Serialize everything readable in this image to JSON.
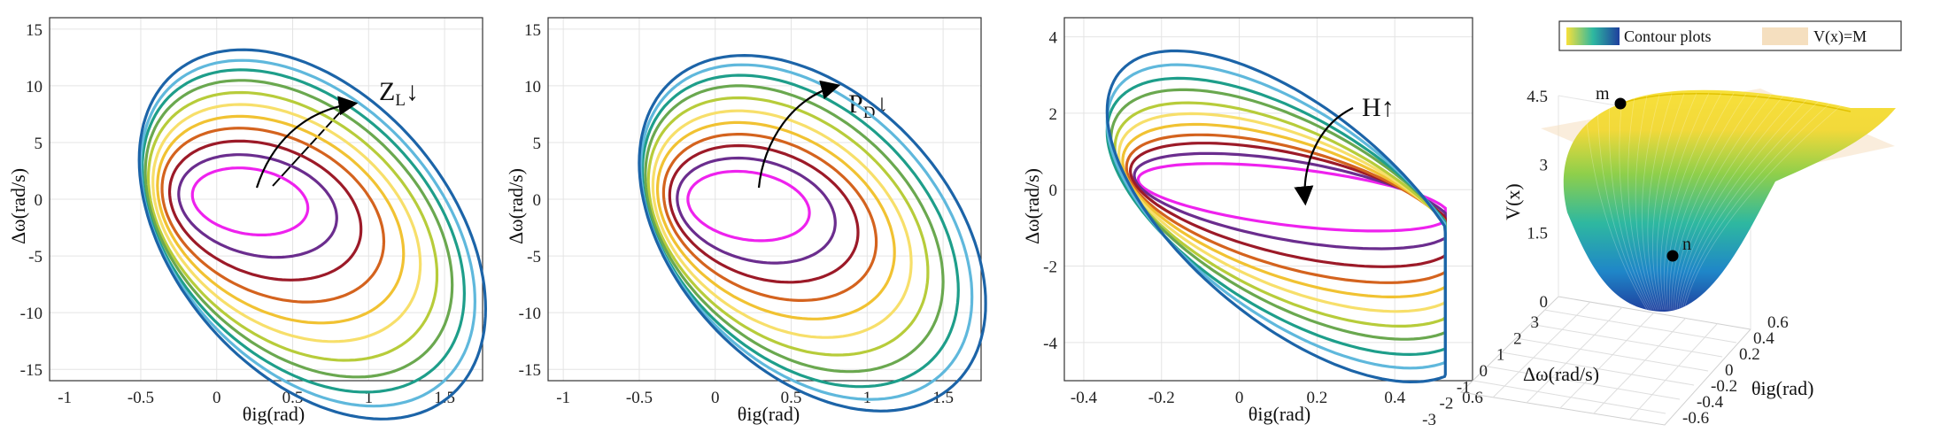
{
  "colors": [
    "#ee22ee",
    "#6b2d8e",
    "#9c1a28",
    "#d4631e",
    "#f1c232",
    "#f7df6a",
    "#b7cc3a",
    "#6aa84f",
    "#1e9e8a",
    "#5fb8dc",
    "#1c64a8"
  ],
  "chart_data": [
    {
      "type": "line",
      "panel": "a",
      "xlabel": "θig(rad)",
      "ylabel": "Δω(rad/s)",
      "xlim": [
        -1.1,
        1.75
      ],
      "ylim": [
        -16,
        16
      ],
      "xticks": [
        "-1",
        "-0.5",
        "0",
        "0.5",
        "1",
        "1.5"
      ],
      "yticks": [
        "-15",
        "-10",
        "-5",
        "0",
        "5",
        "10",
        "15"
      ],
      "annotation": "Z",
      "annotation_sub": "L",
      "annotation_arrow": "↓",
      "grid": true,
      "series": [
        {
          "cx": 0.22,
          "cy": -0.2,
          "a": 0.38,
          "b": 2.9,
          "tilt": -0.2
        },
        {
          "cx": 0.27,
          "cy": -0.6,
          "a": 0.52,
          "b": 4.4,
          "tilt": -0.24
        },
        {
          "cx": 0.32,
          "cy": -1.0,
          "a": 0.63,
          "b": 5.9,
          "tilt": -0.28
        },
        {
          "cx": 0.37,
          "cy": -1.4,
          "a": 0.73,
          "b": 7.3,
          "tilt": -0.32
        },
        {
          "cx": 0.42,
          "cy": -1.8,
          "a": 0.81,
          "b": 8.6,
          "tilt": -0.35
        },
        {
          "cx": 0.46,
          "cy": -2.1,
          "a": 0.88,
          "b": 9.8,
          "tilt": -0.37
        },
        {
          "cx": 0.5,
          "cy": -2.4,
          "a": 0.95,
          "b": 11.0,
          "tilt": -0.39
        },
        {
          "cx": 0.54,
          "cy": -2.6,
          "a": 1.01,
          "b": 12.1,
          "tilt": -0.41
        },
        {
          "cx": 0.57,
          "cy": -2.8,
          "a": 1.06,
          "b": 13.1,
          "tilt": -0.42
        },
        {
          "cx": 0.6,
          "cy": -3.0,
          "a": 1.1,
          "b": 14.0,
          "tilt": -0.43
        },
        {
          "cx": 0.63,
          "cy": -3.1,
          "a": 1.14,
          "b": 14.9,
          "tilt": -0.44
        }
      ]
    },
    {
      "type": "line",
      "panel": "b",
      "xlabel": "θig(rad)",
      "ylabel": "Δω(rad/s)",
      "xlim": [
        -1.1,
        1.75
      ],
      "ylim": [
        -16,
        16
      ],
      "xticks": [
        "-1",
        "-0.5",
        "0",
        "0.5",
        "1",
        "1.5"
      ],
      "yticks": [
        "-15",
        "-10",
        "-5",
        "0",
        "5",
        "10",
        "15"
      ],
      "annotation": "P",
      "annotation_sub": "D",
      "annotation_arrow": "↓",
      "grid": true,
      "series": [
        {
          "cx": 0.22,
          "cy": -0.6,
          "a": 0.4,
          "b": 3.0,
          "tilt": -0.2
        },
        {
          "cx": 0.27,
          "cy": -1.0,
          "a": 0.52,
          "b": 4.5,
          "tilt": -0.24
        },
        {
          "cx": 0.32,
          "cy": -1.3,
          "a": 0.62,
          "b": 5.8,
          "tilt": -0.28
        },
        {
          "cx": 0.36,
          "cy": -1.6,
          "a": 0.7,
          "b": 7.0,
          "tilt": -0.31
        },
        {
          "cx": 0.4,
          "cy": -1.9,
          "a": 0.78,
          "b": 8.2,
          "tilt": -0.34
        },
        {
          "cx": 0.44,
          "cy": -2.2,
          "a": 0.85,
          "b": 9.4,
          "tilt": -0.36
        },
        {
          "cx": 0.48,
          "cy": -2.4,
          "a": 0.92,
          "b": 10.6,
          "tilt": -0.38
        },
        {
          "cx": 0.52,
          "cy": -2.6,
          "a": 0.98,
          "b": 11.7,
          "tilt": -0.4
        },
        {
          "cx": 0.56,
          "cy": -2.8,
          "a": 1.04,
          "b": 12.7,
          "tilt": -0.41
        },
        {
          "cx": 0.6,
          "cy": -2.9,
          "a": 1.09,
          "b": 13.6,
          "tilt": -0.42
        },
        {
          "cx": 0.64,
          "cy": -3.0,
          "a": 1.14,
          "b": 14.4,
          "tilt": -0.43
        }
      ]
    },
    {
      "type": "line",
      "panel": "c",
      "xlabel": "θig(rad)",
      "ylabel": "Δω(rad/s)",
      "xlim": [
        -0.45,
        0.6
      ],
      "ylim": [
        -5,
        4.5
      ],
      "xticks": [
        "-0.4",
        "-0.2",
        "0",
        "0.2",
        "0.4",
        "0.6"
      ],
      "yticks": [
        "-4",
        "-2",
        "0",
        "2",
        "4"
      ],
      "annotation": "H",
      "annotation_arrow": "↑",
      "grid": true,
      "series": [
        {
          "cx": 0.14,
          "cy": -0.2,
          "a": 0.4,
          "b": 0.75,
          "tilt": -0.62
        },
        {
          "cx": 0.14,
          "cy": -0.3,
          "a": 0.41,
          "b": 1.05,
          "tilt": -0.64
        },
        {
          "cx": 0.14,
          "cy": -0.4,
          "a": 0.42,
          "b": 1.35,
          "tilt": -0.66
        },
        {
          "cx": 0.14,
          "cy": -0.5,
          "a": 0.43,
          "b": 1.6,
          "tilt": -0.68
        },
        {
          "cx": 0.14,
          "cy": -0.55,
          "a": 0.44,
          "b": 1.85,
          "tilt": -0.7
        },
        {
          "cx": 0.14,
          "cy": -0.6,
          "a": 0.45,
          "b": 2.1,
          "tilt": -0.72
        },
        {
          "cx": 0.14,
          "cy": -0.65,
          "a": 0.46,
          "b": 2.35,
          "tilt": -0.74
        },
        {
          "cx": 0.14,
          "cy": -0.65,
          "a": 0.47,
          "b": 2.6,
          "tilt": -0.76
        },
        {
          "cx": 0.14,
          "cy": -0.7,
          "a": 0.48,
          "b": 2.85,
          "tilt": -0.78
        },
        {
          "cx": 0.14,
          "cy": -0.7,
          "a": 0.48,
          "b": 3.1,
          "tilt": -0.8
        },
        {
          "cx": 0.14,
          "cy": -0.7,
          "a": 0.48,
          "b": 3.35,
          "tilt": -0.82
        }
      ]
    },
    {
      "type": "surface",
      "panel": "d",
      "xlabel": "θig(rad)",
      "ylabel": "Δω(rad/s)",
      "zlabel": "V(x)",
      "zticks": [
        "0",
        "1.5",
        "3",
        "4.5"
      ],
      "xticks": [
        "-0.6",
        "-0.4",
        "-0.2",
        "0",
        "0.2",
        "0.4",
        "0.6"
      ],
      "yticks": [
        "-3",
        "-2",
        "-1",
        "0",
        "1",
        "2",
        "3"
      ],
      "legend": [
        "Contour plots",
        "V(x)=M"
      ],
      "legend_position": "top",
      "points": [
        {
          "label": "m",
          "z": 4.5
        },
        {
          "label": "n",
          "z": 1.0
        }
      ]
    }
  ]
}
